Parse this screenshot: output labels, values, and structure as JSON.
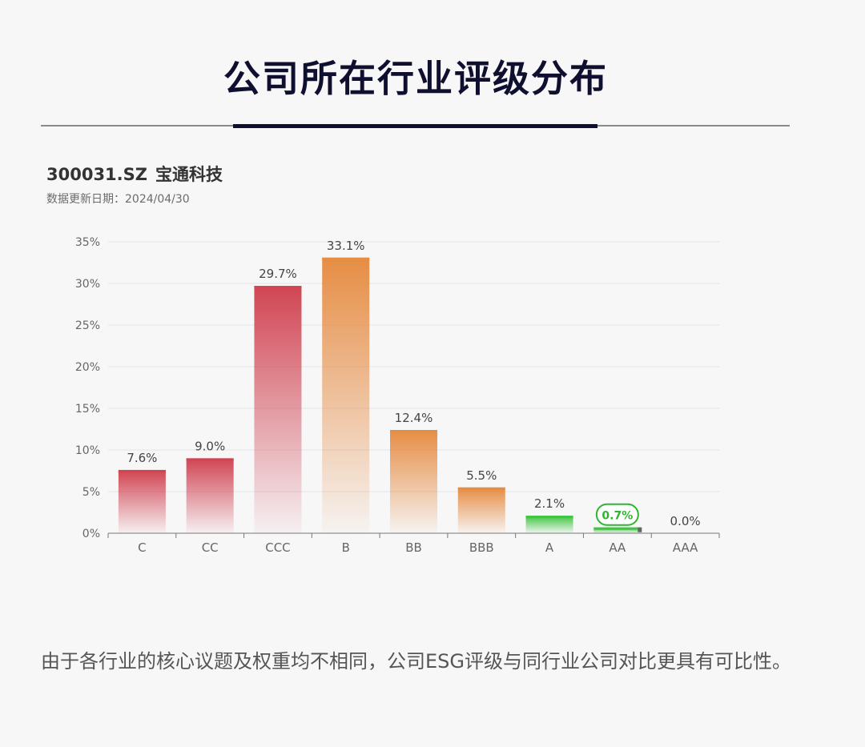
{
  "page_title": "公司所在行业评级分布",
  "company": {
    "code": "300031.SZ",
    "name": "宝通科技"
  },
  "update_label": "数据更新日期：",
  "update_date": "2024/04/30",
  "footnote": "由于各行业的核心议题及权重均不相同，公司ESG评级与同行业公司对比更具有可比性。",
  "colors": {
    "red": "#d14553",
    "orange": "#e68d44",
    "green": "#3fc63f",
    "highlight": "#2fb52f"
  },
  "chart_data": {
    "type": "bar",
    "categories": [
      "C",
      "CC",
      "CCC",
      "B",
      "BB",
      "BBB",
      "A",
      "AA",
      "AAA"
    ],
    "values": [
      7.6,
      9.0,
      29.7,
      33.1,
      12.4,
      5.5,
      2.1,
      0.7,
      0.0
    ],
    "value_labels": [
      "7.6%",
      "9.0%",
      "29.7%",
      "33.1%",
      "12.4%",
      "5.5%",
      "2.1%",
      "0.7%",
      "0.0%"
    ],
    "bar_colors": [
      "red",
      "red",
      "red",
      "orange",
      "orange",
      "orange",
      "green",
      "green",
      "green"
    ],
    "highlight_category": "AA",
    "ylim": [
      0,
      35
    ],
    "yticks": [
      "0%",
      "5%",
      "10%",
      "15%",
      "20%",
      "25%",
      "30%",
      "35%"
    ],
    "grid": true
  }
}
